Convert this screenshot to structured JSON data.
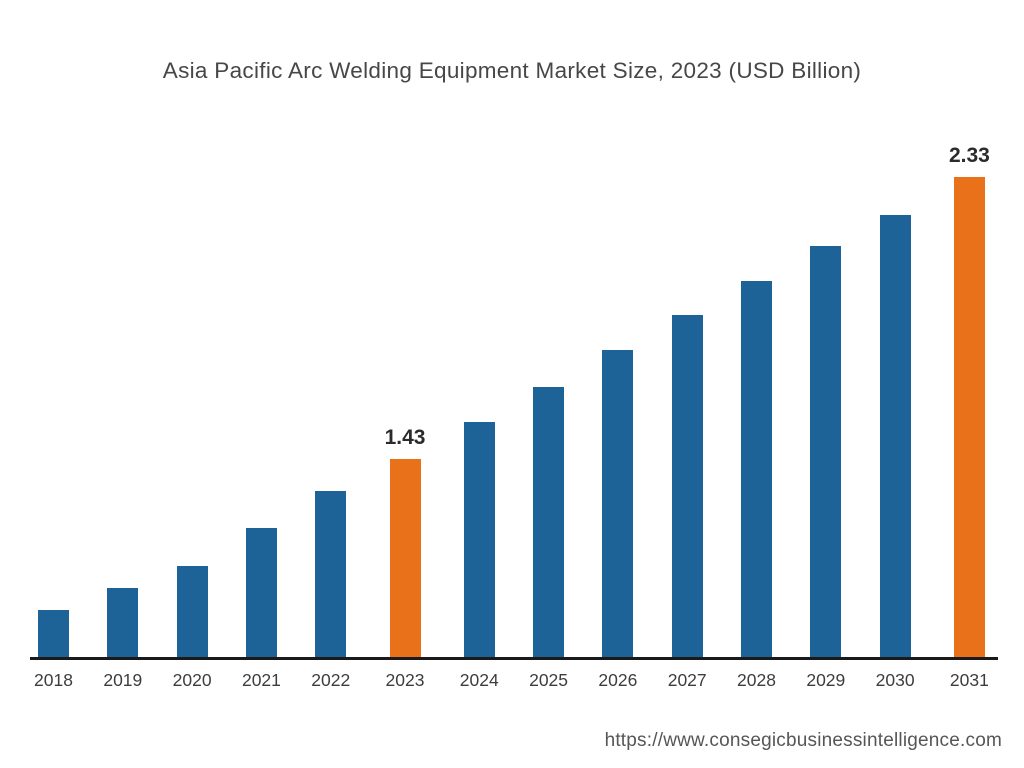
{
  "header": {
    "title": "Asia Pacific Arc Welding Equipment Market Size, 2023 (USD Billion)"
  },
  "footer": {
    "url": "https://www.consegicbusinessintelligence.com"
  },
  "colors": {
    "bar_default": "#1e6397",
    "bar_highlight": "#e8711a",
    "axis_line": "#1a1a1a",
    "title_text": "#474747",
    "label_text": "#2b2b2b"
  },
  "chart_data": {
    "type": "bar",
    "title": "Asia Pacific Arc Welding Equipment Market Size, 2023 (USD Billion)",
    "xlabel": "",
    "ylabel": "",
    "legend": false,
    "grid": false,
    "value_axis_visible": false,
    "categories": [
      "2018",
      "2019",
      "2020",
      "2021",
      "2022",
      "2023",
      "2024",
      "2025",
      "2026",
      "2027",
      "2028",
      "2029",
      "2030",
      "2031"
    ],
    "values": [
      0.95,
      1.02,
      1.09,
      1.21,
      1.33,
      1.43,
      1.55,
      1.66,
      1.78,
      1.89,
      2.0,
      2.11,
      2.21,
      2.33
    ],
    "highlighted_categories": [
      "2023",
      "2031"
    ],
    "data_labels": [
      {
        "category": "2023",
        "label": "1.43"
      },
      {
        "category": "2031",
        "label": "2.33"
      }
    ],
    "visual_baseline_value": 0.8,
    "visual_max_value": 2.33
  }
}
